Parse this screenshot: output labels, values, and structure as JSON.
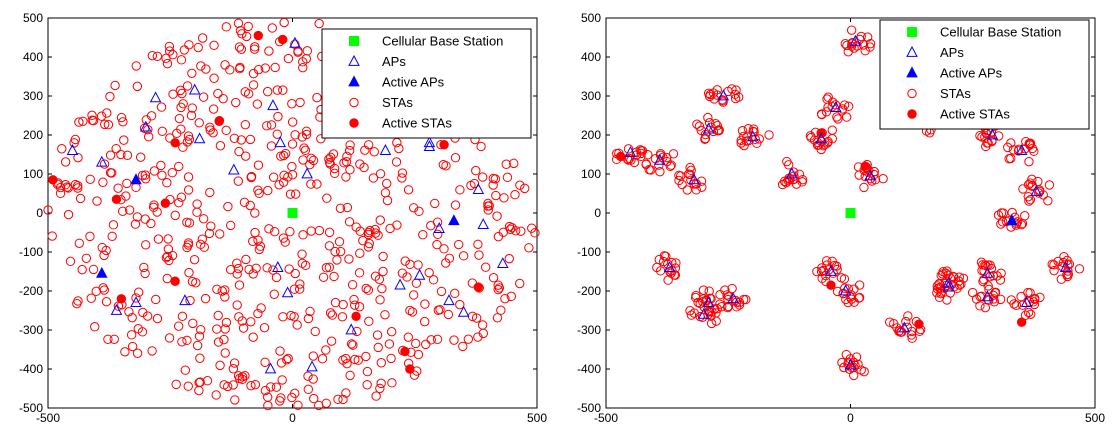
{
  "colors": {
    "bs": "#00ff00",
    "ap": "#0000ff",
    "sta": "#ff0000"
  },
  "chart_data": [
    {
      "type": "scatter",
      "xlim": [
        -500,
        500
      ],
      "ylim": [
        -500,
        500
      ],
      "xticks": [
        "-500",
        "0",
        "500"
      ],
      "yticks": [
        "500",
        "400",
        "300",
        "200",
        "100",
        "0",
        "-100",
        "-200",
        "-300",
        "-400",
        "-500"
      ],
      "legend": {
        "placement": "top-right",
        "entries": [
          "Cellular Base Station",
          "APs",
          "Active APs",
          "STAs",
          "Active STAs"
        ]
      },
      "series": [
        {
          "name": "Cellular Base Station",
          "x": [
            0
          ],
          "y": [
            0
          ]
        },
        {
          "name": "APs",
          "x": [
            -450,
            -390,
            -300,
            -280,
            -200,
            -190,
            -120,
            -40,
            -25,
            5,
            30,
            190,
            280,
            300,
            350,
            380,
            -360,
            -320,
            -220,
            -10,
            -30,
            -45,
            120,
            40,
            220,
            260,
            320,
            390,
            430,
            280
          ],
          "y": [
            160,
            130,
            220,
            295,
            315,
            190,
            110,
            275,
            180,
            435,
            100,
            160,
            180,
            -40,
            -255,
            60,
            -250,
            -230,
            -225,
            -205,
            -140,
            -400,
            -300,
            -395,
            -185,
            -160,
            -225,
            -30,
            -130,
            170
          ]
        },
        {
          "name": "Active APs",
          "x": [
            -390,
            -320,
            330
          ],
          "y": [
            -155,
            85,
            -20
          ]
        },
        {
          "name": "STAs",
          "note": "scattered population, see layout script",
          "x": [],
          "y": []
        },
        {
          "name": "Active STAs",
          "x": [
            -490,
            -240,
            -150,
            -70,
            -20,
            130,
            230,
            240,
            310,
            380,
            -260,
            -360,
            -240,
            -350
          ],
          "y": [
            85,
            180,
            235,
            455,
            445,
            -265,
            -355,
            -400,
            175,
            -190,
            25,
            35,
            -175,
            -220
          ]
        }
      ]
    },
    {
      "type": "scatter",
      "xlim": [
        -500,
        500
      ],
      "ylim": [
        -500,
        500
      ],
      "xticks": [
        "-500",
        "0",
        "500"
      ],
      "yticks": [
        "500",
        "400",
        "300",
        "200",
        "100",
        "0",
        "-100",
        "-200",
        "-300",
        "-400",
        "-500"
      ],
      "legend": {
        "placement": "top-right",
        "entries": [
          "Cellular Base Station",
          "APs",
          "Active APs",
          "STAs",
          "Active STAs"
        ]
      },
      "series": [
        {
          "name": "Cellular Base Station",
          "x": [
            0
          ],
          "y": [
            0
          ]
        },
        {
          "name": "APs",
          "x": [
            -450,
            -390,
            -320,
            -290,
            -260,
            -200,
            -120,
            -60,
            10,
            -30,
            150,
            200,
            280,
            350,
            380,
            -370,
            -290,
            -240,
            -10,
            0,
            110,
            200,
            280,
            290,
            360,
            440,
            -300,
            -40,
            330,
            40
          ],
          "y": [
            155,
            135,
            85,
            215,
            300,
            195,
            100,
            190,
            440,
            270,
            235,
            -190,
            -155,
            160,
            55,
            -140,
            -230,
            -220,
            -200,
            -390,
            -295,
            -180,
            -215,
            200,
            -230,
            -140,
            -260,
            -150,
            -20,
            95
          ]
        },
        {
          "name": "Active APs",
          "x": [
            330
          ],
          "y": [
            -20
          ]
        },
        {
          "name": "STAs",
          "note": "clusters around APs, see layout script",
          "x": [],
          "y": []
        },
        {
          "name": "Active STAs",
          "x": [
            -470,
            -60,
            -40,
            30,
            140,
            350
          ],
          "y": [
            145,
            205,
            -185,
            120,
            -285,
            -280
          ]
        }
      ]
    }
  ]
}
